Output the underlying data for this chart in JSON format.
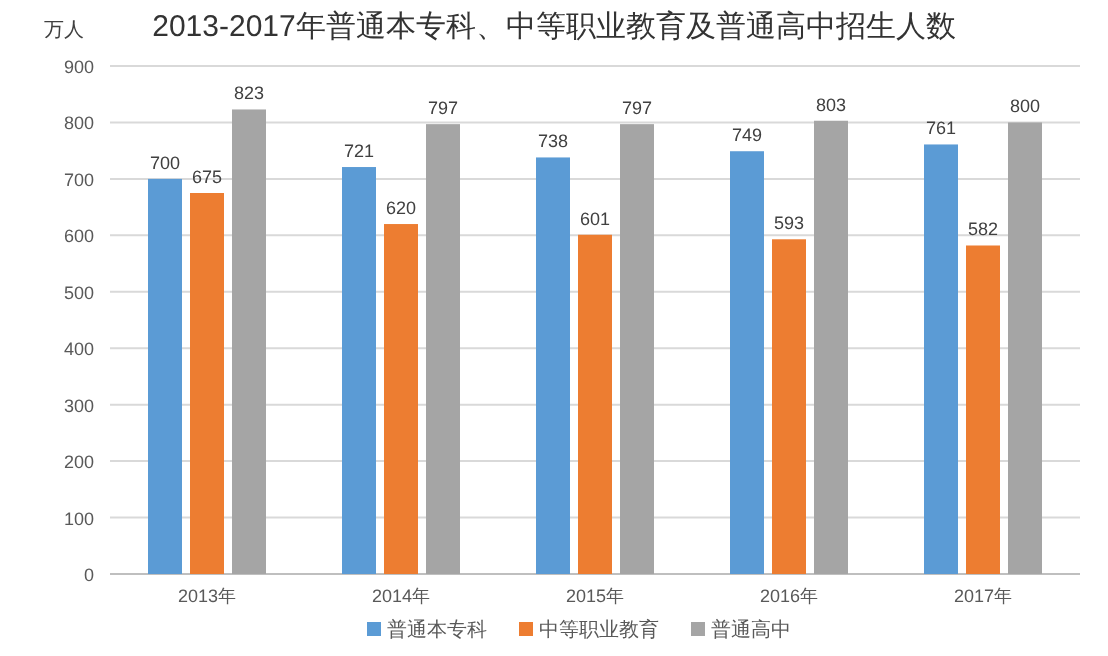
{
  "chart_data": {
    "type": "bar",
    "title": "2013-2017年普通本专科、中等职业教育及普通高中招生人数",
    "ylabel": "万人",
    "categories": [
      "2013年",
      "2014年",
      "2015年",
      "2016年",
      "2017年"
    ],
    "series": [
      {
        "name": "普通本专科",
        "color": "#5b9bd5",
        "values": [
          700,
          721,
          738,
          749,
          761
        ]
      },
      {
        "name": "中等职业教育",
        "color": "#ed7d31",
        "values": [
          675,
          620,
          601,
          593,
          582
        ]
      },
      {
        "name": "普通高中",
        "color": "#a5a5a5",
        "values": [
          823,
          797,
          797,
          803,
          800
        ]
      }
    ],
    "ylim": [
      0,
      900
    ],
    "yticks": [
      0,
      100,
      200,
      300,
      400,
      500,
      600,
      700,
      800,
      900
    ],
    "grid": "y",
    "legend": "bottom",
    "data_labels": true
  }
}
